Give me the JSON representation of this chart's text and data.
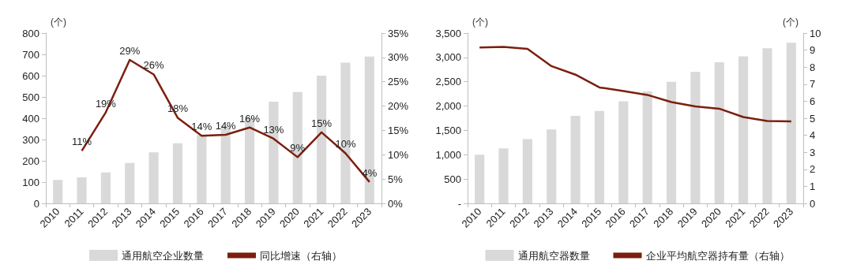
{
  "chart_data": [
    {
      "type": "bar",
      "categories": [
        "2010",
        "2011",
        "2012",
        "2013",
        "2014",
        "2015",
        "2016",
        "2017",
        "2018",
        "2019",
        "2020",
        "2021",
        "2022",
        "2023"
      ],
      "ylabel": "(个)",
      "series": [
        {
          "name": "通用航空企业数量",
          "color": "#d9d9d9",
          "values": [
            110,
            122,
            145,
            190,
            240,
            282,
            320,
            365,
            405,
            478,
            523,
            600,
            661,
            690
          ]
        },
        {
          "name": "同比增速（右轴）",
          "type": "line",
          "axis": "y2",
          "color": "#7b1f0e",
          "values": [
            null,
            10.8,
            18.7,
            29.5,
            26.5,
            17.6,
            13.9,
            14.1,
            15.6,
            13.3,
            9.5,
            14.6,
            10.3,
            4.4
          ],
          "value_labels": [
            null,
            "11%",
            "19%",
            "29%",
            "26%",
            "18%",
            "14%",
            "14%",
            "16%",
            "13%",
            "9%",
            "15%",
            "10%",
            "4%"
          ]
        }
      ],
      "ylim": [
        0,
        800
      ],
      "yticks": [
        0,
        100,
        200,
        300,
        400,
        500,
        600,
        700,
        800
      ],
      "y2lim": [
        0,
        35
      ],
      "y2ticks": [
        {
          "value": 0,
          "label": "0%"
        },
        {
          "value": 5,
          "label": "5%"
        },
        {
          "value": 10,
          "label": "10%"
        },
        {
          "value": 15,
          "label": "15%"
        },
        {
          "value": 20,
          "label": "20%"
        },
        {
          "value": 25,
          "label": "25%"
        },
        {
          "value": 30,
          "label": "30%"
        },
        {
          "value": 35,
          "label": "35%"
        }
      ],
      "legend": "bottom",
      "grid": false,
      "marker": "none",
      "line_style": "solid"
    },
    {
      "type": "bar",
      "categories": [
        "2010",
        "2011",
        "2012",
        "2013",
        "2014",
        "2015",
        "2016",
        "2017",
        "2018",
        "2019",
        "2020",
        "2021",
        "2022",
        "2023"
      ],
      "ylabel": "(个)",
      "y2label": "(个)",
      "series": [
        {
          "name": "通用航空器数量",
          "color": "#d9d9d9",
          "values": [
            1000,
            1130,
            1320,
            1520,
            1800,
            1900,
            2100,
            2300,
            2500,
            2700,
            2900,
            3020,
            3190,
            3300
          ]
        },
        {
          "name": "企业平均航空器持有量（右轴）",
          "type": "line",
          "axis": "y2",
          "color": "#7b1f0e",
          "values": [
            9.15,
            9.19,
            9.07,
            8.06,
            7.56,
            6.81,
            6.6,
            6.37,
            5.95,
            5.69,
            5.56,
            5.07,
            4.84,
            4.81
          ]
        }
      ],
      "ylim": [
        0,
        3500
      ],
      "yticks": [
        {
          "value": 0,
          "label": "-"
        },
        500,
        {
          "value": 1000,
          "label": "1,000"
        },
        {
          "value": 1500,
          "label": "1,500"
        },
        {
          "value": 2000,
          "label": "2,000"
        },
        {
          "value": 2500,
          "label": "2,500"
        },
        {
          "value": 3000,
          "label": "3,000"
        },
        {
          "value": 3500,
          "label": "3,500"
        }
      ],
      "y2lim": [
        0,
        10
      ],
      "y2ticks": [
        0,
        1,
        2,
        3,
        4,
        5,
        6,
        7,
        8,
        9,
        10
      ],
      "legend": "bottom",
      "grid": false,
      "marker": "none",
      "line_style": "solid"
    }
  ]
}
